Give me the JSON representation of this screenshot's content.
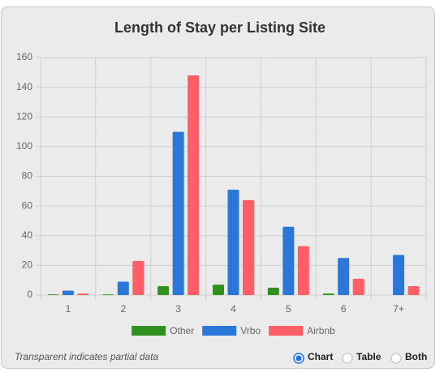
{
  "chart_data": {
    "type": "bar",
    "title": "Length of Stay per Listing Site",
    "categories": [
      "1",
      "2",
      "3",
      "4",
      "5",
      "6",
      "7+"
    ],
    "series": [
      {
        "name": "Other",
        "color": "#31911f",
        "values": [
          0.5,
          0.5,
          6,
          7,
          5,
          1,
          0
        ]
      },
      {
        "name": "Vrbo",
        "color": "#2a76d9",
        "values": [
          3,
          9,
          110,
          71,
          46,
          25,
          27
        ]
      },
      {
        "name": "Airbnb",
        "color": "#ff5e67",
        "values": [
          1,
          23,
          148,
          64,
          33,
          11,
          6
        ]
      }
    ],
    "ylim": [
      0,
      160
    ],
    "yticks": [
      0,
      20,
      40,
      60,
      80,
      100,
      120,
      140,
      160
    ],
    "grid": true
  },
  "footnote": "Transparent indicates partial data",
  "view_options": [
    "Chart",
    "Table",
    "Both"
  ],
  "selected_view": "Chart"
}
